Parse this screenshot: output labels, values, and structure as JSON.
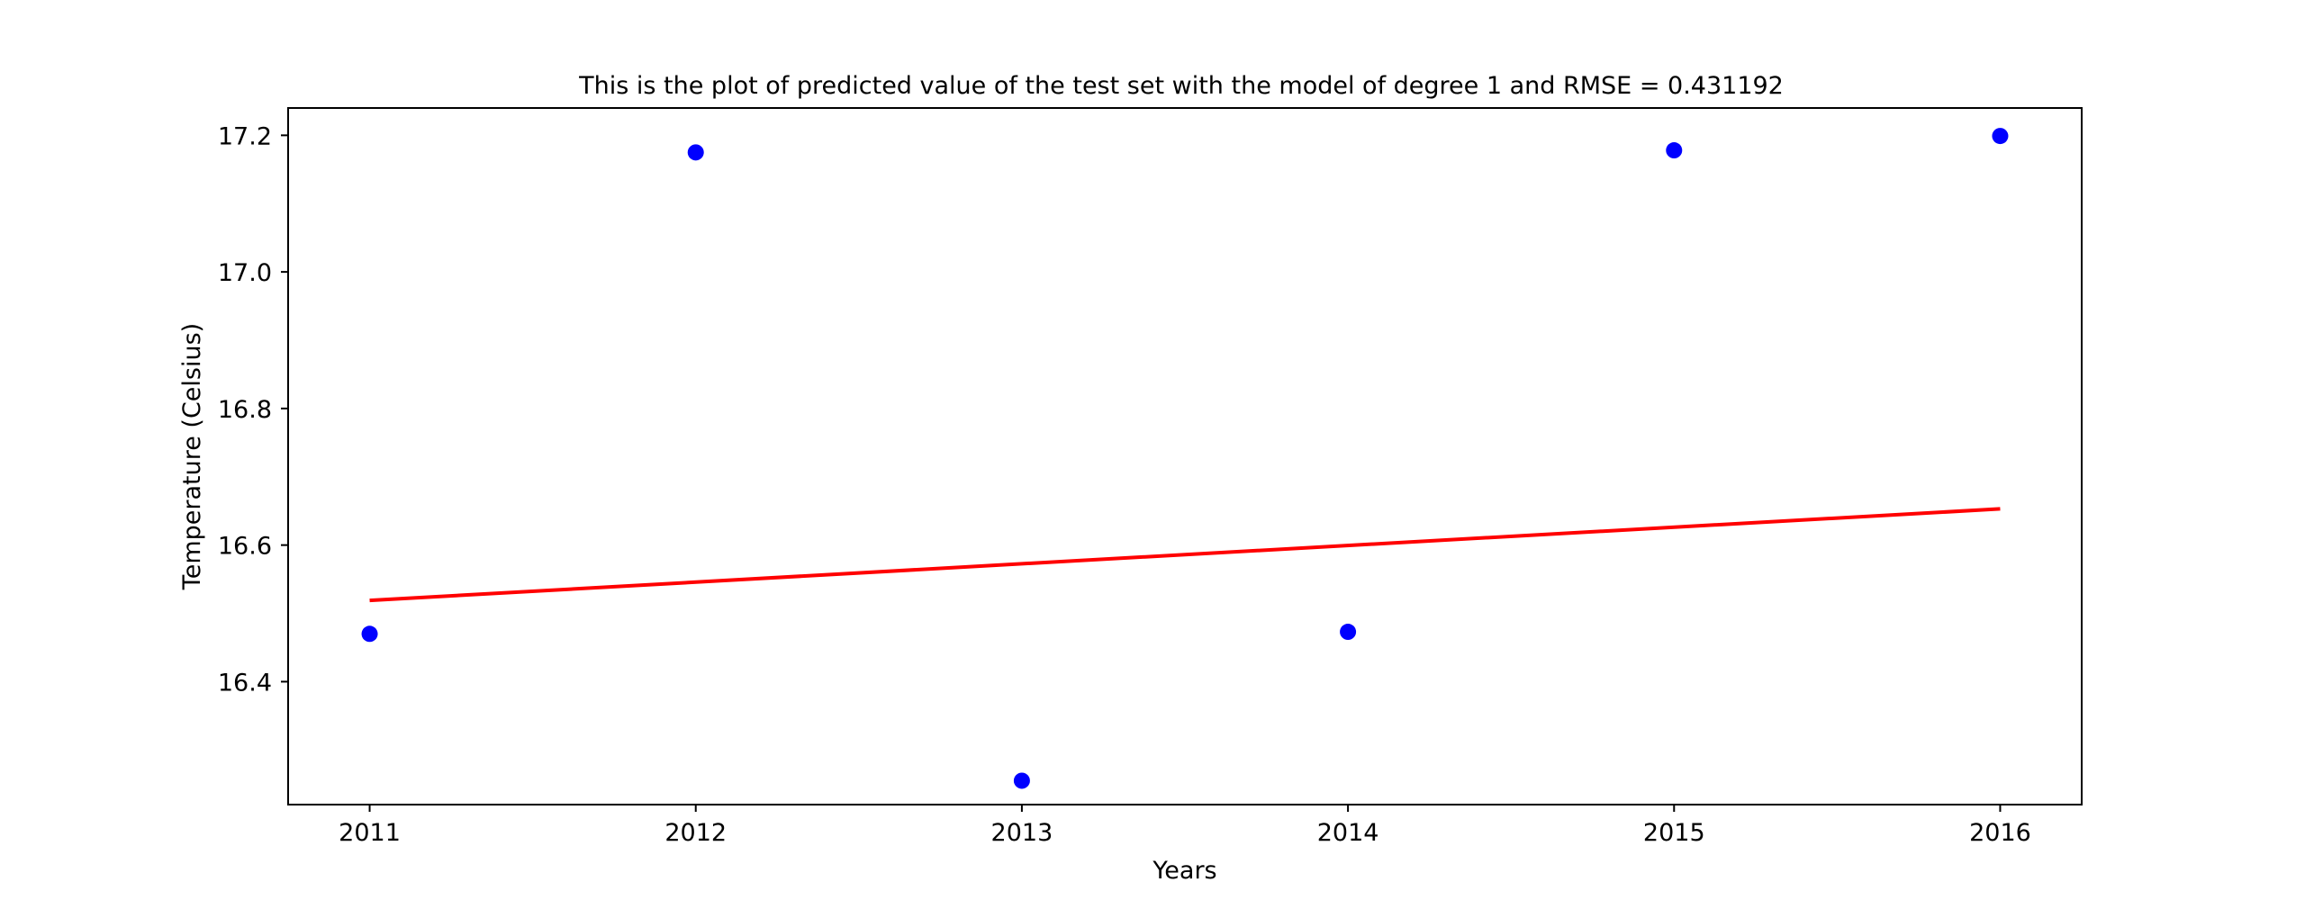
{
  "chart_data": {
    "type": "scatter",
    "title": "This is the plot of predicted value of the test set with the model of degree 1 and RMSE = 0.431192",
    "xlabel": "Years",
    "ylabel": "Temperature (Celsius)",
    "xlim": [
      2010.75,
      2016.25
    ],
    "ylim": [
      16.22,
      17.24
    ],
    "xticks": [
      2011,
      2012,
      2013,
      2014,
      2015,
      2016
    ],
    "xtick_labels": [
      "2011",
      "2012",
      "2013",
      "2014",
      "2015",
      "2016"
    ],
    "yticks": [
      16.4,
      16.6,
      16.8,
      17.0,
      17.2
    ],
    "ytick_labels": [
      "16.4",
      "16.6",
      "16.8",
      "17.0",
      "17.2"
    ],
    "grid": false,
    "series": [
      {
        "kind": "scatter",
        "color": "#0000ff",
        "x": [
          2011,
          2012,
          2013,
          2014,
          2015,
          2016
        ],
        "y": [
          16.47,
          17.175,
          16.255,
          16.473,
          17.178,
          17.199
        ]
      },
      {
        "kind": "line",
        "color": "#ff0000",
        "x": [
          2011,
          2016
        ],
        "y": [
          16.519,
          16.653
        ]
      }
    ]
  }
}
